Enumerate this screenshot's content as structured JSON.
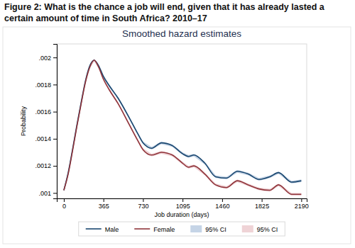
{
  "chart_data": {
    "type": "line",
    "title": "Figure 2: What is the chance a job will end, given that it has already lasted a certain amount of time in South Africa? 2010–17",
    "subtitle": "Smoothed hazard estimates",
    "x_label": "Job duration (days)",
    "y_label": "Probability",
    "x": [
      0,
      40,
      80,
      120,
      160,
      200,
      240,
      280,
      320,
      365,
      420,
      500,
      600,
      680,
      730,
      810,
      900,
      1000,
      1095,
      1150,
      1200,
      1300,
      1400,
      1500,
      1600,
      1700,
      1800,
      1900,
      1980,
      2100,
      2190
    ],
    "series": [
      {
        "name": "Male",
        "type": "line",
        "color": "#1a476f",
        "values": [
          0.00102,
          0.00115,
          0.00132,
          0.0015,
          0.00167,
          0.00183,
          0.00194,
          0.00198,
          0.00194,
          0.00186,
          0.00179,
          0.0017,
          0.00156,
          0.00144,
          0.00137,
          0.00133,
          0.00137,
          0.00135,
          0.00129,
          0.00127,
          0.00128,
          0.00122,
          0.00112,
          0.00111,
          0.00116,
          0.00114,
          0.0011,
          0.00112,
          0.00115,
          0.00108,
          0.00109
        ]
      },
      {
        "name": "Female",
        "type": "line",
        "color": "#90353b",
        "values": [
          0.00102,
          0.00114,
          0.00131,
          0.00149,
          0.00166,
          0.00182,
          0.00193,
          0.00198,
          0.00193,
          0.00184,
          0.00176,
          0.00166,
          0.00151,
          0.00139,
          0.00132,
          0.00128,
          0.0013,
          0.00128,
          0.00122,
          0.00119,
          0.0012,
          0.00114,
          0.00106,
          0.00104,
          0.00109,
          0.00106,
          0.00103,
          0.00102,
          0.00106,
          0.00099,
          0.00099
        ]
      },
      {
        "name": "95% CI",
        "type": "area",
        "color": "#c5d4e6",
        "lower": [
          0.00101,
          0.00114,
          0.00131,
          0.00149,
          0.00166,
          0.00182,
          0.00193,
          0.00197,
          0.00193,
          0.00185,
          0.00178,
          0.00169,
          0.00155,
          0.00143,
          0.00136,
          0.00132,
          0.00136,
          0.00134,
          0.00128,
          0.00126,
          0.00127,
          0.00121,
          0.00111,
          0.0011,
          0.00115,
          0.00113,
          0.00109,
          0.00111,
          0.00114,
          0.00107,
          0.00108
        ],
        "upper": [
          0.00103,
          0.00116,
          0.00133,
          0.00151,
          0.00168,
          0.00184,
          0.00195,
          0.00199,
          0.00195,
          0.00187,
          0.0018,
          0.00171,
          0.00157,
          0.00145,
          0.00138,
          0.00134,
          0.00138,
          0.00136,
          0.0013,
          0.00128,
          0.00129,
          0.00123,
          0.00113,
          0.00112,
          0.00117,
          0.00115,
          0.00111,
          0.00113,
          0.00116,
          0.00109,
          0.0011
        ]
      },
      {
        "name": "95% CI",
        "type": "area",
        "color": "#efd3d6",
        "lower": [
          0.00101,
          0.00113,
          0.0013,
          0.00148,
          0.00165,
          0.00181,
          0.00192,
          0.00197,
          0.00192,
          0.00183,
          0.00175,
          0.00165,
          0.0015,
          0.00138,
          0.00131,
          0.00127,
          0.00129,
          0.00127,
          0.00121,
          0.00118,
          0.00119,
          0.00113,
          0.00105,
          0.00103,
          0.00108,
          0.00105,
          0.00102,
          0.00101,
          0.00105,
          0.00098,
          0.00098
        ],
        "upper": [
          0.00103,
          0.00115,
          0.00132,
          0.0015,
          0.00167,
          0.00183,
          0.00194,
          0.00199,
          0.00194,
          0.00185,
          0.00177,
          0.00167,
          0.00152,
          0.0014,
          0.00133,
          0.00129,
          0.00131,
          0.00129,
          0.00123,
          0.0012,
          0.00121,
          0.00115,
          0.00107,
          0.00105,
          0.0011,
          0.00107,
          0.00104,
          0.00103,
          0.00107,
          0.001,
          0.001
        ]
      }
    ],
    "xlim": [
      -65,
      2240
    ],
    "xticks": [
      0,
      365,
      730,
      1095,
      1460,
      1825,
      2190
    ],
    "ylim": [
      0.00096,
      0.0021
    ],
    "yticks": [
      {
        "value": 0.001,
        "label": ".001"
      },
      {
        "value": 0.0012,
        "label": ".0012"
      },
      {
        "value": 0.0014,
        "label": ".0014"
      },
      {
        "value": 0.0016,
        "label": ".0016"
      },
      {
        "value": 0.0018,
        "label": ".0018"
      },
      {
        "value": 0.002,
        "label": ".002"
      }
    ],
    "grid": false,
    "legend": "bottom"
  }
}
